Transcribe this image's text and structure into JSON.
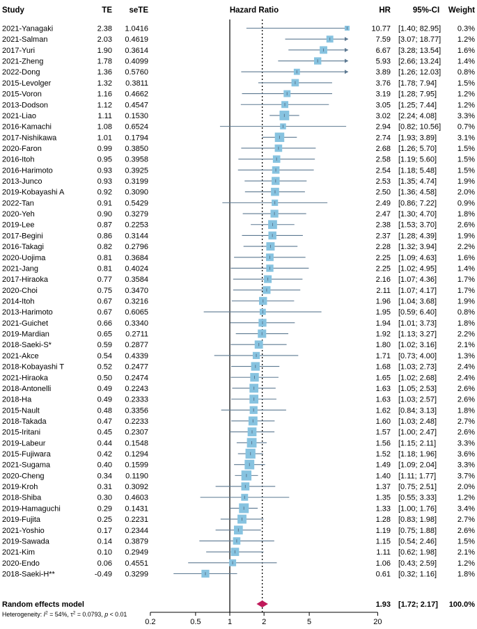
{
  "chart_data": {
    "type": "forest",
    "headers": {
      "study": "Study",
      "te": "TE",
      "sete": "seTE",
      "plot": "Hazard Ratio",
      "hr": "HR",
      "ci": "95%-CI",
      "weight": "Weight"
    },
    "x_scale": "log",
    "xlim": [
      0.2,
      20
    ],
    "ticks": [
      {
        "value": 0.2,
        "label": "0.2"
      },
      {
        "value": 0.5,
        "label": "0.5"
      },
      {
        "value": 1,
        "label": "1"
      },
      {
        "value": 2,
        "label": "2"
      },
      {
        "value": 5,
        "label": "5"
      },
      {
        "value": 20,
        "label": "20"
      }
    ],
    "null_value": 1,
    "studies": [
      {
        "study": "2021-Yanagaki",
        "te": "2.38",
        "sete": "1.0416",
        "hr": 10.77,
        "lo": 1.4,
        "hi": 82.95,
        "hr_text": "10.77",
        "ci_text": "[1.40; 82.95]",
        "weight": 0.3,
        "weight_text": "0.3%"
      },
      {
        "study": "2021-Salman",
        "te": "2.03",
        "sete": "0.4619",
        "hr": 7.59,
        "lo": 3.07,
        "hi": 18.77,
        "hr_text": "7.59",
        "ci_text": "[3.07; 18.77]",
        "weight": 1.2,
        "weight_text": "1.2%"
      },
      {
        "study": "2017-Yuri",
        "te": "1.90",
        "sete": "0.3614",
        "hr": 6.67,
        "lo": 3.28,
        "hi": 13.54,
        "hr_text": "6.67",
        "ci_text": "[3.28; 13.54]",
        "weight": 1.6,
        "weight_text": "1.6%"
      },
      {
        "study": "2021-Zheng",
        "te": "1.78",
        "sete": "0.4099",
        "hr": 5.93,
        "lo": 2.66,
        "hi": 13.24,
        "hr_text": "5.93",
        "ci_text": "[2.66; 13.24]",
        "weight": 1.4,
        "weight_text": "1.4%"
      },
      {
        "study": "2022-Dong",
        "te": "1.36",
        "sete": "0.5760",
        "hr": 3.89,
        "lo": 1.26,
        "hi": 12.03,
        "hr_text": "3.89",
        "ci_text": "[1.26; 12.03]",
        "weight": 0.8,
        "weight_text": "0.8%"
      },
      {
        "study": "2015-Levolger",
        "te": "1.32",
        "sete": "0.3811",
        "hr": 3.76,
        "lo": 1.78,
        "hi": 7.94,
        "hr_text": "3.76",
        "ci_text": "[1.78; 7.94]",
        "weight": 1.5,
        "weight_text": "1.5%"
      },
      {
        "study": "2015-Voron",
        "te": "1.16",
        "sete": "0.4662",
        "hr": 3.19,
        "lo": 1.28,
        "hi": 7.95,
        "hr_text": "3.19",
        "ci_text": "[1.28; 7.95]",
        "weight": 1.2,
        "weight_text": "1.2%"
      },
      {
        "study": "2013-Dodson",
        "te": "1.12",
        "sete": "0.4547",
        "hr": 3.05,
        "lo": 1.25,
        "hi": 7.44,
        "hr_text": "3.05",
        "ci_text": "[1.25; 7.44]",
        "weight": 1.2,
        "weight_text": "1.2%"
      },
      {
        "study": "2021-Liao",
        "te": "1.11",
        "sete": "0.1530",
        "hr": 3.02,
        "lo": 2.24,
        "hi": 4.08,
        "hr_text": "3.02",
        "ci_text": "[2.24; 4.08]",
        "weight": 3.3,
        "weight_text": "3.3%"
      },
      {
        "study": "2016-Kamachi",
        "te": "1.08",
        "sete": "0.6524",
        "hr": 2.94,
        "lo": 0.82,
        "hi": 10.56,
        "hr_text": "2.94",
        "ci_text": "[0.82; 10.56]",
        "weight": 0.7,
        "weight_text": "0.7%"
      },
      {
        "study": "2017-Nishikawa",
        "te": "1.01",
        "sete": "0.1794",
        "hr": 2.74,
        "lo": 1.93,
        "hi": 3.89,
        "hr_text": "2.74",
        "ci_text": "[1.93; 3.89]",
        "weight": 3.1,
        "weight_text": "3.1%"
      },
      {
        "study": "2020-Faron",
        "te": "0.99",
        "sete": "0.3850",
        "hr": 2.68,
        "lo": 1.26,
        "hi": 5.7,
        "hr_text": "2.68",
        "ci_text": "[1.26; 5.70]",
        "weight": 1.5,
        "weight_text": "1.5%"
      },
      {
        "study": "2016-Itoh",
        "te": "0.95",
        "sete": "0.3958",
        "hr": 2.58,
        "lo": 1.19,
        "hi": 5.6,
        "hr_text": "2.58",
        "ci_text": "[1.19; 5.60]",
        "weight": 1.5,
        "weight_text": "1.5%"
      },
      {
        "study": "2016-Harimoto",
        "te": "0.93",
        "sete": "0.3925",
        "hr": 2.54,
        "lo": 1.18,
        "hi": 5.48,
        "hr_text": "2.54",
        "ci_text": "[1.18; 5.48]",
        "weight": 1.5,
        "weight_text": "1.5%"
      },
      {
        "study": "2013-Junco",
        "te": "0.93",
        "sete": "0.3199",
        "hr": 2.53,
        "lo": 1.35,
        "hi": 4.74,
        "hr_text": "2.53",
        "ci_text": "[1.35; 4.74]",
        "weight": 1.9,
        "weight_text": "1.9%"
      },
      {
        "study": "2019-Kobayashi A",
        "te": "0.92",
        "sete": "0.3090",
        "hr": 2.5,
        "lo": 1.36,
        "hi": 4.58,
        "hr_text": "2.50",
        "ci_text": "[1.36; 4.58]",
        "weight": 2.0,
        "weight_text": "2.0%"
      },
      {
        "study": "2022-Tan",
        "te": "0.91",
        "sete": "0.5429",
        "hr": 2.49,
        "lo": 0.86,
        "hi": 7.22,
        "hr_text": "2.49",
        "ci_text": "[0.86; 7.22]",
        "weight": 0.9,
        "weight_text": "0.9%"
      },
      {
        "study": "2020-Yeh",
        "te": "0.90",
        "sete": "0.3279",
        "hr": 2.47,
        "lo": 1.3,
        "hi": 4.7,
        "hr_text": "2.47",
        "ci_text": "[1.30; 4.70]",
        "weight": 1.8,
        "weight_text": "1.8%"
      },
      {
        "study": "2019-Lee",
        "te": "0.87",
        "sete": "0.2253",
        "hr": 2.38,
        "lo": 1.53,
        "hi": 3.7,
        "hr_text": "2.38",
        "ci_text": "[1.53; 3.70]",
        "weight": 2.6,
        "weight_text": "2.6%"
      },
      {
        "study": "2017-Begini",
        "te": "0.86",
        "sete": "0.3144",
        "hr": 2.37,
        "lo": 1.28,
        "hi": 4.39,
        "hr_text": "2.37",
        "ci_text": "[1.28; 4.39]",
        "weight": 1.9,
        "weight_text": "1.9%"
      },
      {
        "study": "2016-Takagi",
        "te": "0.82",
        "sete": "0.2796",
        "hr": 2.28,
        "lo": 1.32,
        "hi": 3.94,
        "hr_text": "2.28",
        "ci_text": "[1.32; 3.94]",
        "weight": 2.2,
        "weight_text": "2.2%"
      },
      {
        "study": "2020-Uojima",
        "te": "0.81",
        "sete": "0.3684",
        "hr": 2.25,
        "lo": 1.09,
        "hi": 4.63,
        "hr_text": "2.25",
        "ci_text": "[1.09; 4.63]",
        "weight": 1.6,
        "weight_text": "1.6%"
      },
      {
        "study": "2021-Jang",
        "te": "0.81",
        "sete": "0.4024",
        "hr": 2.25,
        "lo": 1.02,
        "hi": 4.95,
        "hr_text": "2.25",
        "ci_text": "[1.02; 4.95]",
        "weight": 1.4,
        "weight_text": "1.4%"
      },
      {
        "study": "2017-Hiraoka",
        "te": "0.77",
        "sete": "0.3584",
        "hr": 2.16,
        "lo": 1.07,
        "hi": 4.36,
        "hr_text": "2.16",
        "ci_text": "[1.07; 4.36]",
        "weight": 1.7,
        "weight_text": "1.7%"
      },
      {
        "study": "2020-Choi",
        "te": "0.75",
        "sete": "0.3470",
        "hr": 2.11,
        "lo": 1.07,
        "hi": 4.17,
        "hr_text": "2.11",
        "ci_text": "[1.07; 4.17]",
        "weight": 1.7,
        "weight_text": "1.7%"
      },
      {
        "study": "2014-Itoh",
        "te": "0.67",
        "sete": "0.3216",
        "hr": 1.96,
        "lo": 1.04,
        "hi": 3.68,
        "hr_text": "1.96",
        "ci_text": "[1.04; 3.68]",
        "weight": 1.9,
        "weight_text": "1.9%"
      },
      {
        "study": "2013-Harimoto",
        "te": "0.67",
        "sete": "0.6065",
        "hr": 1.95,
        "lo": 0.59,
        "hi": 6.4,
        "hr_text": "1.95",
        "ci_text": "[0.59; 6.40]",
        "weight": 0.8,
        "weight_text": "0.8%"
      },
      {
        "study": "2021-Guichet",
        "te": "0.66",
        "sete": "0.3340",
        "hr": 1.94,
        "lo": 1.01,
        "hi": 3.73,
        "hr_text": "1.94",
        "ci_text": "[1.01; 3.73]",
        "weight": 1.8,
        "weight_text": "1.8%"
      },
      {
        "study": "2019-Mardian",
        "te": "0.65",
        "sete": "0.2711",
        "hr": 1.92,
        "lo": 1.13,
        "hi": 3.27,
        "hr_text": "1.92",
        "ci_text": "[1.13; 3.27]",
        "weight": 2.2,
        "weight_text": "2.2%"
      },
      {
        "study": "2018-Saeki-S*",
        "te": "0.59",
        "sete": "0.2877",
        "hr": 1.8,
        "lo": 1.02,
        "hi": 3.16,
        "hr_text": "1.80",
        "ci_text": "[1.02; 3.16]",
        "weight": 2.1,
        "weight_text": "2.1%"
      },
      {
        "study": "2021-Akce",
        "te": "0.54",
        "sete": "0.4339",
        "hr": 1.71,
        "lo": 0.73,
        "hi": 4.0,
        "hr_text": "1.71",
        "ci_text": "[0.73; 4.00]",
        "weight": 1.3,
        "weight_text": "1.3%"
      },
      {
        "study": "2018-Kobayashi T",
        "te": "0.52",
        "sete": "0.2477",
        "hr": 1.68,
        "lo": 1.03,
        "hi": 2.73,
        "hr_text": "1.68",
        "ci_text": "[1.03; 2.73]",
        "weight": 2.4,
        "weight_text": "2.4%"
      },
      {
        "study": "2021-Hiraoka",
        "te": "0.50",
        "sete": "0.2474",
        "hr": 1.65,
        "lo": 1.02,
        "hi": 2.68,
        "hr_text": "1.65",
        "ci_text": "[1.02; 2.68]",
        "weight": 2.4,
        "weight_text": "2.4%"
      },
      {
        "study": "2018-Antonelli",
        "te": "0.49",
        "sete": "0.2243",
        "hr": 1.63,
        "lo": 1.05,
        "hi": 2.53,
        "hr_text": "1.63",
        "ci_text": "[1.05; 2.53]",
        "weight": 2.6,
        "weight_text": "2.6%"
      },
      {
        "study": "2018-Ha",
        "te": "0.49",
        "sete": "0.2333",
        "hr": 1.63,
        "lo": 1.03,
        "hi": 2.57,
        "hr_text": "1.63",
        "ci_text": "[1.03; 2.57]",
        "weight": 2.6,
        "weight_text": "2.6%"
      },
      {
        "study": "2015-Nault",
        "te": "0.48",
        "sete": "0.3356",
        "hr": 1.62,
        "lo": 0.84,
        "hi": 3.13,
        "hr_text": "1.62",
        "ci_text": "[0.84; 3.13]",
        "weight": 1.8,
        "weight_text": "1.8%"
      },
      {
        "study": "2018-Takada",
        "te": "0.47",
        "sete": "0.2233",
        "hr": 1.6,
        "lo": 1.03,
        "hi": 2.48,
        "hr_text": "1.60",
        "ci_text": "[1.03; 2.48]",
        "weight": 2.7,
        "weight_text": "2.7%"
      },
      {
        "study": "2015-Iritani",
        "te": "0.45",
        "sete": "0.2307",
        "hr": 1.57,
        "lo": 1.0,
        "hi": 2.47,
        "hr_text": "1.57",
        "ci_text": "[1.00; 2.47]",
        "weight": 2.6,
        "weight_text": "2.6%"
      },
      {
        "study": "2019-Labeur",
        "te": "0.44",
        "sete": "0.1548",
        "hr": 1.56,
        "lo": 1.15,
        "hi": 2.11,
        "hr_text": "1.56",
        "ci_text": "[1.15; 2.11]",
        "weight": 3.3,
        "weight_text": "3.3%"
      },
      {
        "study": "2015-Fujiwara",
        "te": "0.42",
        "sete": "0.1294",
        "hr": 1.52,
        "lo": 1.18,
        "hi": 1.96,
        "hr_text": "1.52",
        "ci_text": "[1.18; 1.96]",
        "weight": 3.6,
        "weight_text": "3.6%"
      },
      {
        "study": "2021-Sugama",
        "te": "0.40",
        "sete": "0.1599",
        "hr": 1.49,
        "lo": 1.09,
        "hi": 2.04,
        "hr_text": "1.49",
        "ci_text": "[1.09; 2.04]",
        "weight": 3.3,
        "weight_text": "3.3%"
      },
      {
        "study": "2020-Cheng",
        "te": "0.34",
        "sete": "0.1190",
        "hr": 1.4,
        "lo": 1.11,
        "hi": 1.77,
        "hr_text": "1.40",
        "ci_text": "[1.11; 1.77]",
        "weight": 3.7,
        "weight_text": "3.7%"
      },
      {
        "study": "2019-Kroh",
        "te": "0.31",
        "sete": "0.3092",
        "hr": 1.37,
        "lo": 0.75,
        "hi": 2.51,
        "hr_text": "1.37",
        "ci_text": "[0.75; 2.51]",
        "weight": 2.0,
        "weight_text": "2.0%"
      },
      {
        "study": "2018-Shiba",
        "te": "0.30",
        "sete": "0.4603",
        "hr": 1.35,
        "lo": 0.55,
        "hi": 3.33,
        "hr_text": "1.35",
        "ci_text": "[0.55; 3.33]",
        "weight": 1.2,
        "weight_text": "1.2%"
      },
      {
        "study": "2019-Hamaguchi",
        "te": "0.29",
        "sete": "0.1431",
        "hr": 1.33,
        "lo": 1.0,
        "hi": 1.76,
        "hr_text": "1.33",
        "ci_text": "[1.00; 1.76]",
        "weight": 3.4,
        "weight_text": "3.4%"
      },
      {
        "study": "2019-Fujita",
        "te": "0.25",
        "sete": "0.2231",
        "hr": 1.28,
        "lo": 0.83,
        "hi": 1.98,
        "hr_text": "1.28",
        "ci_text": "[0.83; 1.98]",
        "weight": 2.7,
        "weight_text": "2.7%"
      },
      {
        "study": "2021-Yoshio",
        "te": "0.17",
        "sete": "0.2344",
        "hr": 1.19,
        "lo": 0.75,
        "hi": 1.88,
        "hr_text": "1.19",
        "ci_text": "[0.75; 1.88]",
        "weight": 2.6,
        "weight_text": "2.6%"
      },
      {
        "study": "2019-Sawada",
        "te": "0.14",
        "sete": "0.3879",
        "hr": 1.15,
        "lo": 0.54,
        "hi": 2.46,
        "hr_text": "1.15",
        "ci_text": "[0.54; 2.46]",
        "weight": 1.5,
        "weight_text": "1.5%"
      },
      {
        "study": "2021-Kim",
        "te": "0.10",
        "sete": "0.2949",
        "hr": 1.11,
        "lo": 0.62,
        "hi": 1.98,
        "hr_text": "1.11",
        "ci_text": "[0.62; 1.98]",
        "weight": 2.1,
        "weight_text": "2.1%"
      },
      {
        "study": "2020-Endo",
        "te": "0.06",
        "sete": "0.4551",
        "hr": 1.06,
        "lo": 0.43,
        "hi": 2.59,
        "hr_text": "1.06",
        "ci_text": "[0.43; 2.59]",
        "weight": 1.2,
        "weight_text": "1.2%"
      },
      {
        "study": "2018-Saeki-H**",
        "te": "-0.49",
        "sete": "0.3299",
        "hr": 0.61,
        "lo": 0.32,
        "hi": 1.16,
        "hr_text": "0.61",
        "ci_text": "[0.32; 1.16]",
        "weight": 1.8,
        "weight_text": "1.8%"
      }
    ],
    "summary": {
      "label": "Random effects model",
      "hr": 1.93,
      "lo": 1.72,
      "hi": 2.17,
      "hr_text": "1.93",
      "ci_text": "[1.72; 2.17]",
      "weight_text": "100.0%"
    },
    "heterogeneity": {
      "prefix": "Heterogeneity: ",
      "i2_symbol": "I",
      "i2_exp": "2",
      "i2_value": " = 54%, ",
      "tau_symbol": "τ",
      "tau_exp": "2",
      "tau_value": " = 0.0793, ",
      "p_symbol": "p",
      "p_value": " < 0.01"
    },
    "colors": {
      "square": "#87c3e0",
      "ci_line": "#5b7891",
      "point": "#5b7891",
      "diamond": "#c0195a",
      "axis": "#000000",
      "dotted": "#000000",
      "text": "#000000"
    }
  }
}
